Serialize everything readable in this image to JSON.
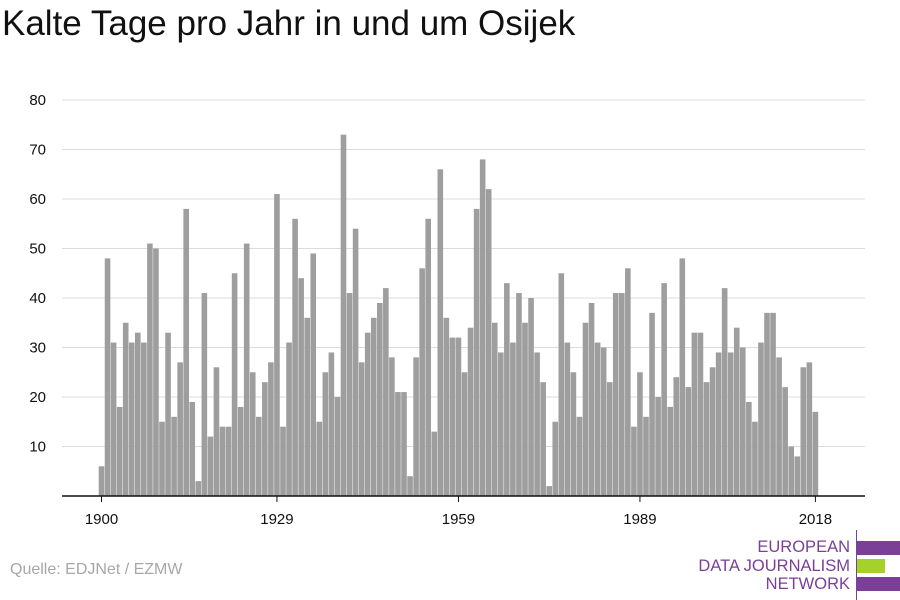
{
  "title": "Kalte Tage pro Jahr in und um Osijek",
  "source": "Quelle: EDJNet / EZMW",
  "logo": {
    "lines": [
      "EUROPEAN",
      "DATA JOURNALISM",
      "NETWORK"
    ],
    "colors": {
      "purple": "#7b3f97",
      "green": "#a4d12c"
    }
  },
  "colors": {
    "bar": "#9e9e9e",
    "grid": "#dcdcdc",
    "axis": "#111111"
  },
  "chart_data": {
    "type": "bar",
    "title": "Kalte Tage pro Jahr in und um Osijek",
    "xlabel": "",
    "ylabel": "",
    "ylim": [
      0,
      80
    ],
    "yticks": [
      10,
      20,
      30,
      40,
      50,
      60,
      70,
      80
    ],
    "xticks": [
      1900,
      1929,
      1959,
      1989,
      2018
    ],
    "grid": true,
    "x": [
      1900,
      1901,
      1902,
      1903,
      1904,
      1905,
      1906,
      1907,
      1908,
      1909,
      1910,
      1911,
      1912,
      1913,
      1914,
      1915,
      1916,
      1917,
      1918,
      1919,
      1920,
      1921,
      1922,
      1923,
      1924,
      1925,
      1926,
      1927,
      1928,
      1929,
      1930,
      1931,
      1932,
      1933,
      1934,
      1935,
      1936,
      1937,
      1938,
      1939,
      1940,
      1941,
      1942,
      1943,
      1944,
      1945,
      1946,
      1947,
      1948,
      1949,
      1950,
      1951,
      1952,
      1953,
      1954,
      1955,
      1956,
      1957,
      1958,
      1959,
      1960,
      1961,
      1962,
      1963,
      1964,
      1965,
      1966,
      1967,
      1968,
      1969,
      1970,
      1971,
      1972,
      1973,
      1974,
      1975,
      1976,
      1977,
      1978,
      1979,
      1980,
      1981,
      1982,
      1983,
      1984,
      1985,
      1986,
      1987,
      1988,
      1989,
      1990,
      1991,
      1992,
      1993,
      1994,
      1995,
      1996,
      1997,
      1998,
      1999,
      2000,
      2001,
      2002,
      2003,
      2004,
      2005,
      2006,
      2007,
      2008,
      2009,
      2010,
      2011,
      2012,
      2013,
      2014,
      2015,
      2016,
      2017,
      2018
    ],
    "values": [
      6,
      48,
      31,
      18,
      35,
      31,
      33,
      31,
      51,
      50,
      15,
      33,
      16,
      27,
      58,
      19,
      3,
      41,
      12,
      26,
      14,
      14,
      45,
      18,
      51,
      25,
      16,
      23,
      27,
      61,
      14,
      31,
      56,
      44,
      36,
      49,
      15,
      25,
      29,
      20,
      73,
      41,
      54,
      27,
      33,
      36,
      39,
      42,
      28,
      21,
      21,
      4,
      28,
      46,
      56,
      13,
      66,
      36,
      32,
      32,
      25,
      34,
      58,
      68,
      62,
      35,
      29,
      43,
      31,
      41,
      35,
      40,
      29,
      23,
      2,
      15,
      45,
      31,
      25,
      16,
      35,
      39,
      31,
      30,
      23,
      41,
      41,
      46,
      14,
      25,
      16,
      37,
      20,
      43,
      18,
      24,
      48,
      22,
      33,
      33,
      23,
      26,
      29,
      42,
      29,
      34,
      30,
      19,
      15,
      31,
      37,
      37,
      28,
      22,
      10,
      8,
      26,
      27,
      17
    ]
  }
}
